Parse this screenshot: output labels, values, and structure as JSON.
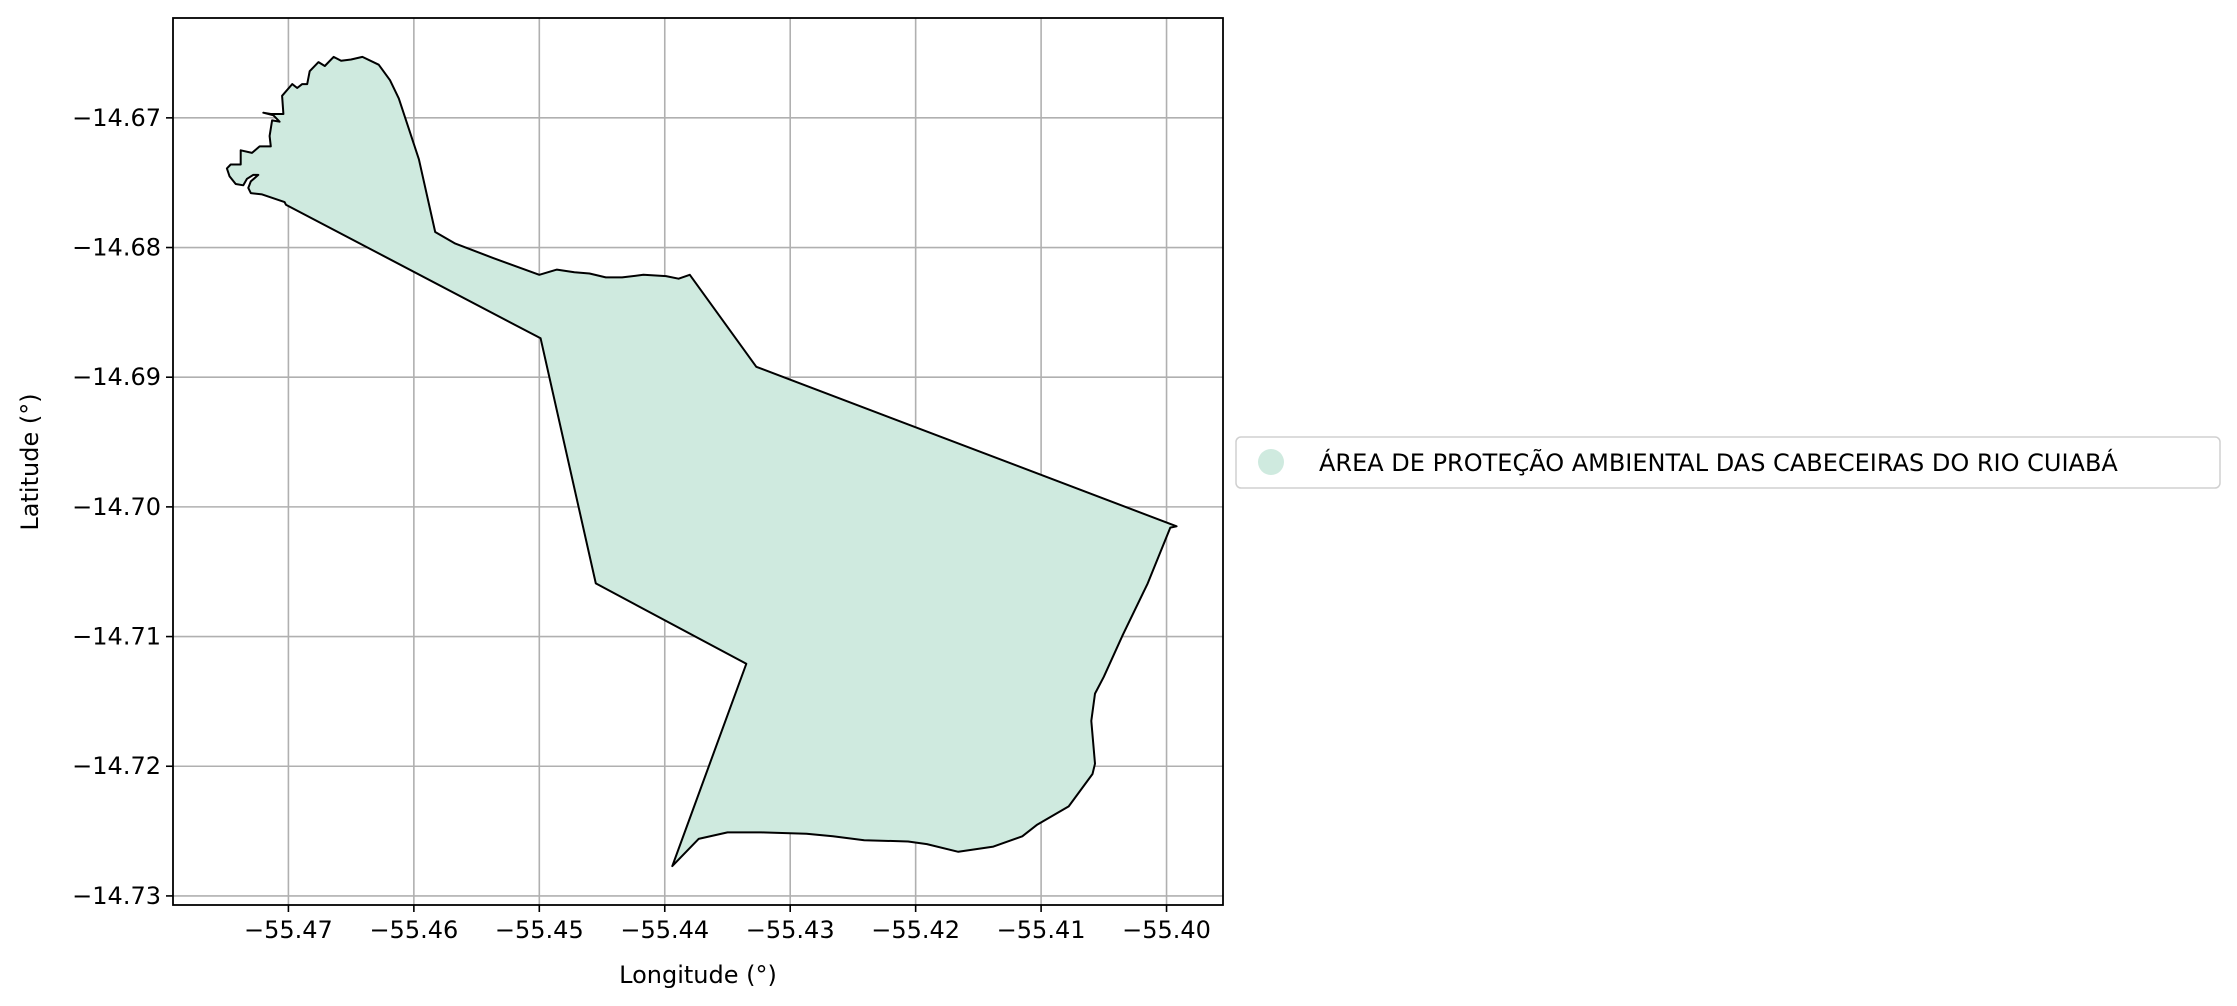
{
  "chart_data": {
    "type": "map",
    "title": "",
    "xlabel": "Longitude (°)",
    "ylabel": "Latitude (°)",
    "xlim": [
      -55.4792,
      -55.3955
    ],
    "ylim": [
      -14.7307,
      -14.6623
    ],
    "grid": true,
    "x_ticks": [
      -55.47,
      -55.46,
      -55.45,
      -55.44,
      -55.43,
      -55.42,
      -55.41,
      -55.4
    ],
    "x_tick_labels": [
      "−55.47",
      "−55.46",
      "−55.45",
      "−55.44",
      "−55.43",
      "−55.42",
      "−55.41",
      "−55.40"
    ],
    "y_ticks": [
      -14.67,
      -14.68,
      -14.69,
      -14.7,
      -14.71,
      -14.72,
      -14.73
    ],
    "y_tick_labels": [
      "−14.67",
      "−14.68",
      "−14.69",
      "−14.70",
      "−14.71",
      "−14.72",
      "−14.73"
    ],
    "legend": {
      "placement": "center-right outside plot",
      "entries": [
        {
          "label": "ÁREA DE PROTEÇÃO AMBIENTAL DAS CABECEIRAS DO RIO CUIABÁ",
          "color": "#cfeadf"
        }
      ]
    },
    "polygons": [
      {
        "name": "ÁREA DE PROTEÇÃO AMBIENTAL DAS CABECEIRAS DO RIO CUIABÁ",
        "fill": "#cfeadf",
        "edge": "#000000",
        "lonlat": [
          [
            -55.4703,
            -14.6765
          ],
          [
            -55.4721,
            -14.6759
          ],
          [
            -55.473,
            -14.6758
          ],
          [
            -55.4732,
            -14.6754
          ],
          [
            -55.473,
            -14.6749
          ],
          [
            -55.4724,
            -14.6744
          ],
          [
            -55.4728,
            -14.6744
          ],
          [
            -55.4733,
            -14.6747
          ],
          [
            -55.4736,
            -14.6752
          ],
          [
            -55.4742,
            -14.6751
          ],
          [
            -55.4747,
            -14.6745
          ],
          [
            -55.4749,
            -14.6739
          ],
          [
            -55.4746,
            -14.6736
          ],
          [
            -55.4738,
            -14.6736
          ],
          [
            -55.4738,
            -14.6725
          ],
          [
            -55.4729,
            -14.6727
          ],
          [
            -55.4723,
            -14.6722
          ],
          [
            -55.4714,
            -14.6722
          ],
          [
            -55.4715,
            -14.6714
          ],
          [
            -55.4713,
            -14.6702
          ],
          [
            -55.4707,
            -14.6703
          ],
          [
            -55.4712,
            -14.6698
          ],
          [
            -55.472,
            -14.6696
          ],
          [
            -55.4714,
            -14.6697
          ],
          [
            -55.4704,
            -14.6697
          ],
          [
            -55.4705,
            -14.6683
          ],
          [
            -55.4697,
            -14.6674
          ],
          [
            -55.4693,
            -14.6677
          ],
          [
            -55.4689,
            -14.6674
          ],
          [
            -55.4685,
            -14.6674
          ],
          [
            -55.4683,
            -14.6664
          ],
          [
            -55.4676,
            -14.6657
          ],
          [
            -55.4671,
            -14.666
          ],
          [
            -55.4664,
            -14.6653
          ],
          [
            -55.4658,
            -14.6656
          ],
          [
            -55.465,
            -14.6655
          ],
          [
            -55.4641,
            -14.6653
          ],
          [
            -55.4628,
            -14.6659
          ],
          [
            -55.4619,
            -14.6671
          ],
          [
            -55.4612,
            -14.6685
          ],
          [
            -55.4596,
            -14.6732
          ],
          [
            -55.4583,
            -14.6788
          ],
          [
            -55.4567,
            -14.6797
          ],
          [
            -55.4537,
            -14.6808
          ],
          [
            -55.45,
            -14.6821
          ],
          [
            -55.4486,
            -14.6817
          ],
          [
            -55.4472,
            -14.6819
          ],
          [
            -55.446,
            -14.682
          ],
          [
            -55.4447,
            -14.6823
          ],
          [
            -55.4434,
            -14.6823
          ],
          [
            -55.4417,
            -14.6821
          ],
          [
            -55.4399,
            -14.6822
          ],
          [
            -55.4389,
            -14.6824
          ],
          [
            -55.438,
            -14.6821
          ],
          [
            -55.4327,
            -14.6892
          ],
          [
            -55.3992,
            -14.7015
          ],
          [
            -55.3997,
            -14.7016
          ],
          [
            -55.4015,
            -14.7059
          ],
          [
            -55.4035,
            -14.7099
          ],
          [
            -55.405,
            -14.7131
          ],
          [
            -55.4057,
            -14.7144
          ],
          [
            -55.406,
            -14.7165
          ],
          [
            -55.4057,
            -14.7198
          ],
          [
            -55.4059,
            -14.7206
          ],
          [
            -55.4078,
            -14.7231
          ],
          [
            -55.4103,
            -14.7245
          ],
          [
            -55.4115,
            -14.7254
          ],
          [
            -55.4138,
            -14.7262
          ],
          [
            -55.4166,
            -14.7266
          ],
          [
            -55.4191,
            -14.726
          ],
          [
            -55.4206,
            -14.7258
          ],
          [
            -55.4241,
            -14.7257
          ],
          [
            -55.4266,
            -14.7254
          ],
          [
            -55.4287,
            -14.7252
          ],
          [
            -55.4323,
            -14.7251
          ],
          [
            -55.435,
            -14.7251
          ],
          [
            -55.4373,
            -14.7256
          ],
          [
            -55.4394,
            -14.7277
          ],
          [
            -55.4335,
            -14.7121
          ],
          [
            -55.4455,
            -14.7059
          ],
          [
            -55.4499,
            -14.687
          ],
          [
            -55.4702,
            -14.6767
          ]
        ]
      }
    ]
  }
}
